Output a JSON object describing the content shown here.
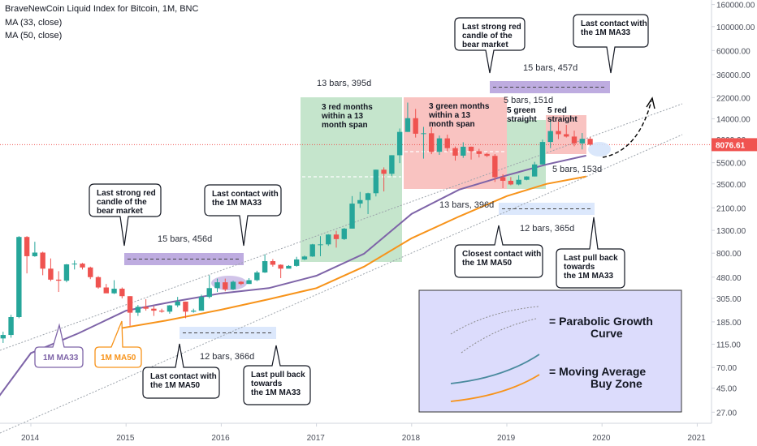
{
  "header": {
    "title": "BraveNewCoin Liquid Index for Bitcoin, 1M, BNC",
    "ma1": "MA (33, close)",
    "ma2": "MA (50, close)"
  },
  "price_tag": "8076.61",
  "colors": {
    "up": "#26a69a",
    "down": "#ef5350",
    "ma33": "#7e64a8",
    "ma50": "#f7931a",
    "green_zone": "#b7dfbf",
    "red_zone": "#f7b4b2",
    "purple_bar": "#b39ddb",
    "blue_bar": "#d6e4fb",
    "legend_bg": "#dcdcfc"
  },
  "annotations": {
    "g1_bars": "13 bars, 395d",
    "g1_text": [
      "3 red months",
      "within a 13",
      "month span"
    ],
    "r1_text": [
      "3 green months",
      "within a 13",
      "month span"
    ],
    "g2_text": [
      "5 green",
      "straight"
    ],
    "r2_text": [
      "5 red",
      "straight"
    ],
    "b151": "5 bars, 151d",
    "b153": "5 bars, 153d",
    "b396": "13 bars, 396d",
    "b365": "12 bars, 365d",
    "b456": "15 bars, 456d",
    "b457": "15 bars, 457d",
    "b366": "12 bars, 366d",
    "c_red_2018": [
      "Last strong red",
      "candle of the",
      "bear market"
    ],
    "c_ma33_2019": [
      "Last contact with",
      "the 1M MA33"
    ],
    "c_ma50_2019": [
      "Closest contact with",
      "the 1M MA50"
    ],
    "c_pull_2019": [
      "Last pull back",
      "towards",
      "the 1M MA33"
    ],
    "c_red_2014": [
      "Last strong red",
      "candle of the",
      "bear market"
    ],
    "c_ma33_2016": [
      "Last contact with",
      "the 1M MA33"
    ],
    "c_ma50_2015": [
      "Last contact with",
      "the 1M MA50"
    ],
    "c_pull_2016": [
      "Last pull back",
      "towards",
      "the 1M MA33"
    ],
    "ma33_label": "1M MA33",
    "ma50_label": "1M MA50",
    "legend1": [
      "= Parabolic Growth",
      "Curve"
    ],
    "legend2": [
      "= Moving Average",
      "Buy Zone"
    ]
  },
  "chart_data": {
    "type": "candlestick",
    "title": "BraveNewCoin Liquid Index for Bitcoin, 1M, BNC",
    "y_scale": "log",
    "y_ticks": [
      "160000.00",
      "100000.00",
      "60000.00",
      "36000.00",
      "22000.00",
      "14000.00",
      "9000.00",
      "5500.00",
      "3500.00",
      "2100.00",
      "1300.00",
      "800.00",
      "480.00",
      "305.00",
      "185.00",
      "115.00",
      "70.00",
      "45.00",
      "27.00"
    ],
    "x_ticks": [
      "2014",
      "2015",
      "2016",
      "2017",
      "2018",
      "2019",
      "2020",
      "2021"
    ],
    "last_price": 8076.61,
    "candles": [
      {
        "t": "2013-09",
        "o": 130,
        "h": 150,
        "l": 118,
        "c": 140
      },
      {
        "t": "2013-10",
        "o": 140,
        "h": 215,
        "l": 132,
        "c": 205
      },
      {
        "t": "2013-11",
        "o": 205,
        "h": 1150,
        "l": 200,
        "c": 1130
      },
      {
        "t": "2013-12",
        "o": 1130,
        "h": 1150,
        "l": 520,
        "c": 750
      },
      {
        "t": "2014-01",
        "o": 750,
        "h": 1020,
        "l": 740,
        "c": 810
      },
      {
        "t": "2014-02",
        "o": 810,
        "h": 825,
        "l": 500,
        "c": 575
      },
      {
        "t": "2014-03",
        "o": 575,
        "h": 715,
        "l": 440,
        "c": 455
      },
      {
        "t": "2014-04",
        "o": 455,
        "h": 545,
        "l": 350,
        "c": 445
      },
      {
        "t": "2014-05",
        "o": 445,
        "h": 635,
        "l": 430,
        "c": 630
      },
      {
        "t": "2014-06",
        "o": 630,
        "h": 685,
        "l": 565,
        "c": 640
      },
      {
        "t": "2014-07",
        "o": 640,
        "h": 650,
        "l": 565,
        "c": 590
      },
      {
        "t": "2014-08",
        "o": 590,
        "h": 600,
        "l": 460,
        "c": 480
      },
      {
        "t": "2014-09",
        "o": 480,
        "h": 490,
        "l": 375,
        "c": 385
      },
      {
        "t": "2014-10",
        "o": 385,
        "h": 415,
        "l": 355,
        "c": 340
      },
      {
        "t": "2014-11",
        "o": 340,
        "h": 450,
        "l": 335,
        "c": 375
      },
      {
        "t": "2014-12",
        "o": 375,
        "h": 385,
        "l": 305,
        "c": 320
      },
      {
        "t": "2015-01",
        "o": 320,
        "h": 320,
        "l": 170,
        "c": 225
      },
      {
        "t": "2015-02",
        "o": 225,
        "h": 265,
        "l": 210,
        "c": 255
      },
      {
        "t": "2015-03",
        "o": 255,
        "h": 300,
        "l": 235,
        "c": 245
      },
      {
        "t": "2015-04",
        "o": 245,
        "h": 260,
        "l": 210,
        "c": 235
      },
      {
        "t": "2015-05",
        "o": 235,
        "h": 245,
        "l": 225,
        "c": 230
      },
      {
        "t": "2015-06",
        "o": 230,
        "h": 265,
        "l": 220,
        "c": 263
      },
      {
        "t": "2015-07",
        "o": 263,
        "h": 315,
        "l": 253,
        "c": 285
      },
      {
        "t": "2015-08",
        "o": 285,
        "h": 285,
        "l": 200,
        "c": 230
      },
      {
        "t": "2015-09",
        "o": 230,
        "h": 245,
        "l": 225,
        "c": 235
      },
      {
        "t": "2015-10",
        "o": 235,
        "h": 330,
        "l": 235,
        "c": 315
      },
      {
        "t": "2015-11",
        "o": 315,
        "h": 500,
        "l": 305,
        "c": 380
      },
      {
        "t": "2015-12",
        "o": 380,
        "h": 465,
        "l": 350,
        "c": 430
      },
      {
        "t": "2016-01",
        "o": 430,
        "h": 465,
        "l": 355,
        "c": 370
      },
      {
        "t": "2016-02",
        "o": 370,
        "h": 445,
        "l": 365,
        "c": 435
      },
      {
        "t": "2016-03",
        "o": 435,
        "h": 440,
        "l": 405,
        "c": 415
      },
      {
        "t": "2016-04",
        "o": 415,
        "h": 470,
        "l": 415,
        "c": 450
      },
      {
        "t": "2016-05",
        "o": 450,
        "h": 550,
        "l": 440,
        "c": 530
      },
      {
        "t": "2016-06",
        "o": 530,
        "h": 780,
        "l": 525,
        "c": 675
      },
      {
        "t": "2016-07",
        "o": 675,
        "h": 705,
        "l": 600,
        "c": 625
      },
      {
        "t": "2016-08",
        "o": 625,
        "h": 630,
        "l": 470,
        "c": 575
      },
      {
        "t": "2016-09",
        "o": 575,
        "h": 620,
        "l": 590,
        "c": 610
      },
      {
        "t": "2016-10",
        "o": 610,
        "h": 740,
        "l": 600,
        "c": 700
      },
      {
        "t": "2016-11",
        "o": 700,
        "h": 760,
        "l": 690,
        "c": 745
      },
      {
        "t": "2016-12",
        "o": 745,
        "h": 975,
        "l": 740,
        "c": 965
      },
      {
        "t": "2017-01",
        "o": 965,
        "h": 1150,
        "l": 750,
        "c": 965
      },
      {
        "t": "2017-02",
        "o": 965,
        "h": 1200,
        "l": 935,
        "c": 1190
      },
      {
        "t": "2017-03",
        "o": 1190,
        "h": 1290,
        "l": 900,
        "c": 1080
      },
      {
        "t": "2017-04",
        "o": 1080,
        "h": 1370,
        "l": 1060,
        "c": 1350
      },
      {
        "t": "2017-05",
        "o": 1350,
        "h": 2700,
        "l": 1350,
        "c": 2300
      },
      {
        "t": "2017-06",
        "o": 2300,
        "h": 2950,
        "l": 2100,
        "c": 2480
      },
      {
        "t": "2017-07",
        "o": 2480,
        "h": 2900,
        "l": 1840,
        "c": 2870
      },
      {
        "t": "2017-08",
        "o": 2870,
        "h": 4750,
        "l": 2680,
        "c": 4740
      },
      {
        "t": "2017-09",
        "o": 4740,
        "h": 4980,
        "l": 2980,
        "c": 4340
      },
      {
        "t": "2017-10",
        "o": 4340,
        "h": 6450,
        "l": 4150,
        "c": 6450
      },
      {
        "t": "2017-11",
        "o": 6450,
        "h": 11400,
        "l": 5450,
        "c": 10600
      },
      {
        "t": "2017-12",
        "o": 10600,
        "h": 19800,
        "l": 10600,
        "c": 14200
      },
      {
        "t": "2018-01",
        "o": 14200,
        "h": 17300,
        "l": 9400,
        "c": 10200
      },
      {
        "t": "2018-02",
        "o": 10200,
        "h": 11800,
        "l": 6000,
        "c": 10300
      },
      {
        "t": "2018-03",
        "o": 10300,
        "h": 11700,
        "l": 6600,
        "c": 6930
      },
      {
        "t": "2018-04",
        "o": 6930,
        "h": 9800,
        "l": 6500,
        "c": 9240
      },
      {
        "t": "2018-05",
        "o": 9240,
        "h": 10000,
        "l": 7000,
        "c": 7500
      },
      {
        "t": "2018-06",
        "o": 7500,
        "h": 7770,
        "l": 5750,
        "c": 6390
      },
      {
        "t": "2018-07",
        "o": 6390,
        "h": 8500,
        "l": 6100,
        "c": 7730
      },
      {
        "t": "2018-08",
        "o": 7730,
        "h": 7760,
        "l": 5880,
        "c": 7030
      },
      {
        "t": "2018-09",
        "o": 7030,
        "h": 7400,
        "l": 6150,
        "c": 6630
      },
      {
        "t": "2018-10",
        "o": 6630,
        "h": 6800,
        "l": 6200,
        "c": 6360
      },
      {
        "t": "2018-11",
        "o": 6360,
        "h": 6600,
        "l": 3650,
        "c": 4040
      },
      {
        "t": "2018-12",
        "o": 4040,
        "h": 4300,
        "l": 3200,
        "c": 3740
      },
      {
        "t": "2019-01",
        "o": 3740,
        "h": 4050,
        "l": 3400,
        "c": 3460
      },
      {
        "t": "2019-02",
        "o": 3460,
        "h": 4200,
        "l": 3400,
        "c": 3820
      },
      {
        "t": "2019-03",
        "o": 3820,
        "h": 4120,
        "l": 3780,
        "c": 4100
      },
      {
        "t": "2019-04",
        "o": 4100,
        "h": 5600,
        "l": 4100,
        "c": 5300
      },
      {
        "t": "2019-05",
        "o": 5300,
        "h": 9000,
        "l": 5300,
        "c": 8550
      },
      {
        "t": "2019-06",
        "o": 8550,
        "h": 13800,
        "l": 7500,
        "c": 10800
      },
      {
        "t": "2019-07",
        "o": 10800,
        "h": 13200,
        "l": 9100,
        "c": 10100
      },
      {
        "t": "2019-08",
        "o": 10100,
        "h": 12300,
        "l": 9400,
        "c": 9600
      },
      {
        "t": "2019-09",
        "o": 9600,
        "h": 10900,
        "l": 7800,
        "c": 8300
      },
      {
        "t": "2019-10",
        "o": 8300,
        "h": 10350,
        "l": 7300,
        "c": 9150
      },
      {
        "t": "2019-11",
        "o": 9150,
        "h": 9500,
        "l": 7900,
        "c": 8076.61
      }
    ],
    "ma33": [
      {
        "t": "2013-09",
        "v": 38
      },
      {
        "t": "2014-01",
        "v": 95
      },
      {
        "t": "2014-07",
        "v": 145
      },
      {
        "t": "2015-01",
        "v": 235
      },
      {
        "t": "2015-07",
        "v": 285
      },
      {
        "t": "2016-01",
        "v": 340
      },
      {
        "t": "2016-07",
        "v": 380
      },
      {
        "t": "2017-01",
        "v": 495
      },
      {
        "t": "2017-07",
        "v": 790
      },
      {
        "t": "2018-01",
        "v": 1850
      },
      {
        "t": "2018-07",
        "v": 3100
      },
      {
        "t": "2019-01",
        "v": 4200
      },
      {
        "t": "2019-06",
        "v": 5300
      },
      {
        "t": "2019-11",
        "v": 6400
      }
    ],
    "ma50": [
      {
        "t": "2014-12",
        "v": 160
      },
      {
        "t": "2015-06",
        "v": 190
      },
      {
        "t": "2016-01",
        "v": 240
      },
      {
        "t": "2016-07",
        "v": 300
      },
      {
        "t": "2017-01",
        "v": 380
      },
      {
        "t": "2017-07",
        "v": 600
      },
      {
        "t": "2018-01",
        "v": 1100
      },
      {
        "t": "2018-07",
        "v": 1750
      },
      {
        "t": "2019-01",
        "v": 2700
      },
      {
        "t": "2019-06",
        "v": 3500
      },
      {
        "t": "2019-11",
        "v": 4100
      }
    ]
  }
}
